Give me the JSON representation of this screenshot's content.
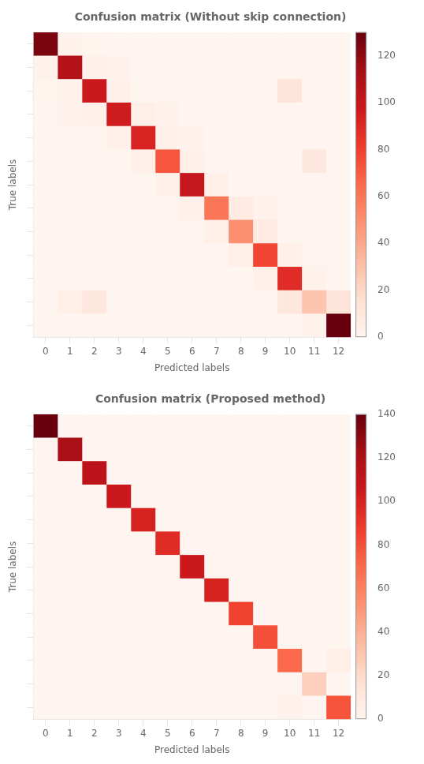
{
  "chart_data": [
    {
      "type": "heatmap",
      "title": "Confusion matrix (Without skip connection)",
      "xlabel": "Predicted labels",
      "ylabel": "True labels",
      "categories": [
        "0",
        "1",
        "2",
        "3",
        "4",
        "5",
        "6",
        "7",
        "8",
        "9",
        "10",
        "11",
        "12"
      ],
      "values": [
        [
          125,
          2,
          1,
          0,
          0,
          0,
          0,
          0,
          0,
          0,
          0,
          0,
          0
        ],
        [
          2,
          108,
          3,
          2,
          0,
          0,
          0,
          0,
          0,
          0,
          0,
          0,
          0
        ],
        [
          1,
          2,
          98,
          3,
          0,
          0,
          0,
          0,
          0,
          0,
          12,
          0,
          0
        ],
        [
          0,
          2,
          3,
          96,
          5,
          2,
          0,
          0,
          0,
          0,
          0,
          0,
          0
        ],
        [
          0,
          0,
          0,
          3,
          92,
          4,
          2,
          0,
          0,
          0,
          0,
          0,
          0
        ],
        [
          0,
          0,
          0,
          0,
          3,
          72,
          4,
          0,
          0,
          0,
          0,
          10,
          0
        ],
        [
          0,
          0,
          0,
          0,
          0,
          3,
          100,
          5,
          0,
          0,
          0,
          0,
          0
        ],
        [
          0,
          0,
          0,
          0,
          0,
          0,
          4,
          60,
          8,
          2,
          0,
          0,
          0
        ],
        [
          0,
          0,
          0,
          0,
          0,
          0,
          0,
          5,
          50,
          8,
          0,
          0,
          0
        ],
        [
          0,
          0,
          0,
          0,
          0,
          0,
          0,
          0,
          5,
          78,
          4,
          0,
          0
        ],
        [
          0,
          0,
          0,
          0,
          0,
          0,
          0,
          0,
          0,
          3,
          88,
          2,
          0
        ],
        [
          0,
          5,
          10,
          0,
          0,
          0,
          0,
          0,
          0,
          0,
          10,
          28,
          12
        ],
        [
          0,
          0,
          0,
          0,
          0,
          0,
          0,
          0,
          0,
          0,
          0,
          2,
          130
        ]
      ],
      "color": "Reds",
      "colorbar": {
        "range": [
          0,
          130
        ],
        "ticks": [
          0,
          20,
          40,
          60,
          80,
          100,
          120
        ]
      },
      "tick_labels": "x",
      "grid": false
    },
    {
      "type": "heatmap",
      "title": "Confusion matrix (Proposed method)",
      "xlabel": "Predicted labels",
      "ylabel": "True labels",
      "categories": [
        "0",
        "1",
        "2",
        "3",
        "4",
        "5",
        "6",
        "7",
        "8",
        "9",
        "10",
        "11",
        "12"
      ],
      "values": [
        [
          140,
          0,
          0,
          0,
          0,
          0,
          0,
          0,
          0,
          0,
          0,
          0,
          0
        ],
        [
          0,
          120,
          0,
          0,
          0,
          0,
          0,
          0,
          0,
          0,
          0,
          0,
          0
        ],
        [
          0,
          0,
          112,
          0,
          0,
          0,
          0,
          0,
          0,
          0,
          0,
          0,
          0
        ],
        [
          0,
          0,
          0,
          105,
          0,
          0,
          0,
          0,
          0,
          0,
          0,
          0,
          0
        ],
        [
          0,
          0,
          0,
          0,
          100,
          0,
          0,
          0,
          0,
          0,
          0,
          0,
          0
        ],
        [
          0,
          0,
          0,
          0,
          0,
          95,
          0,
          0,
          0,
          0,
          0,
          0,
          0
        ],
        [
          0,
          0,
          0,
          0,
          0,
          0,
          105,
          0,
          0,
          0,
          0,
          0,
          0
        ],
        [
          0,
          0,
          0,
          0,
          0,
          0,
          0,
          100,
          0,
          0,
          0,
          0,
          0
        ],
        [
          0,
          0,
          0,
          0,
          0,
          0,
          0,
          0,
          85,
          0,
          0,
          0,
          0
        ],
        [
          0,
          0,
          0,
          0,
          0,
          0,
          0,
          0,
          0,
          80,
          0,
          0,
          0
        ],
        [
          0,
          0,
          0,
          0,
          0,
          0,
          0,
          0,
          0,
          0,
          70,
          0,
          5
        ],
        [
          0,
          0,
          0,
          0,
          0,
          0,
          0,
          0,
          0,
          0,
          0,
          25,
          0
        ],
        [
          0,
          0,
          0,
          0,
          0,
          0,
          0,
          0,
          0,
          0,
          3,
          0,
          78
        ]
      ],
      "color": "Reds",
      "colorbar": {
        "range": [
          0,
          140
        ],
        "ticks": [
          0,
          20,
          40,
          60,
          80,
          100,
          120,
          140
        ]
      },
      "tick_labels": "x",
      "grid": false
    }
  ]
}
